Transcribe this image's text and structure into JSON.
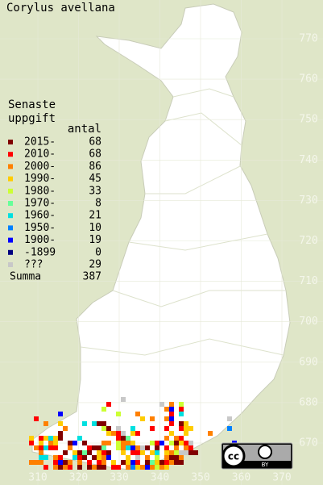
{
  "title": "Corylus avellana",
  "legend": {
    "title_lines": [
      "Senaste",
      "uppgift"
    ],
    "count_header": "antal",
    "rows": [
      {
        "label": "2015-",
        "count": 68,
        "color": "#800000"
      },
      {
        "label": "2010-",
        "count": 68,
        "color": "#ff0000"
      },
      {
        "label": "2000-",
        "count": 86,
        "color": "#ff8000"
      },
      {
        "label": "1990-",
        "count": 45,
        "color": "#ffcc00"
      },
      {
        "label": "1980-",
        "count": 33,
        "color": "#ccff33"
      },
      {
        "label": "1970-",
        "count": 8,
        "color": "#66ff99"
      },
      {
        "label": "1960-",
        "count": 21,
        "color": "#00e0e0"
      },
      {
        "label": "1950-",
        "count": 10,
        "color": "#0080ff"
      },
      {
        "label": "1900-",
        "count": 19,
        "color": "#0000ff"
      },
      {
        "label": "-1899",
        "count": 0,
        "color": "#000080"
      },
      {
        "label": "???",
        "count": 29,
        "color": "#c8c8c8"
      }
    ],
    "total": {
      "label": "Summa",
      "count": 387
    }
  },
  "axes": {
    "y_labels": [
      770,
      760,
      750,
      740,
      730,
      720,
      710,
      700,
      690,
      680,
      670
    ],
    "x_labels": [
      310,
      320,
      330,
      340,
      350,
      360,
      370
    ]
  },
  "license": {
    "cc": "cc",
    "by": "BY"
  }
}
